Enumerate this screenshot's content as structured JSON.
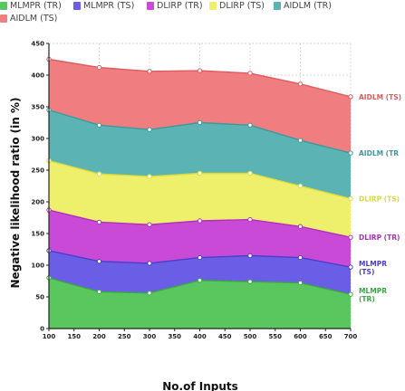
{
  "chart_data": {
    "type": "area",
    "stacked": true,
    "xlabel": "No.of Inputs",
    "ylabel": "Negative likelihood ratio (in %)",
    "x": [
      100,
      200,
      300,
      400,
      500,
      600,
      700
    ],
    "xticks": [
      "100",
      "150",
      "200",
      "250",
      "300",
      "350",
      "400",
      "450",
      "500",
      "550",
      "600",
      "650",
      "700"
    ],
    "yticks": [
      "0",
      "50",
      "100",
      "150",
      "200",
      "250",
      "300",
      "350",
      "400",
      "450"
    ],
    "xlim": [
      100,
      700
    ],
    "ylim": [
      0,
      450
    ],
    "grid": true,
    "legend_position": "top",
    "series": [
      {
        "name": "MLMPR (TR)",
        "end_label": [
          "MLMPR",
          "(TR)"
        ],
        "color": "#59c65e",
        "line_color": "#3aa844",
        "cumulative": [
          80,
          58,
          56,
          76,
          74,
          72,
          54
        ]
      },
      {
        "name": "MLMPR (TS)",
        "end_label": [
          "MLMPR",
          "(TS)"
        ],
        "color": "#6a5de6",
        "line_color": "#4a3fc8",
        "cumulative": [
          123,
          106,
          103,
          112,
          115,
          112,
          97
        ]
      },
      {
        "name": "DLIRP (TR)",
        "end_label": [
          "DLIRP (TR)"
        ],
        "color": "#c94ad6",
        "line_color": "#b02fbe",
        "cumulative": [
          187,
          168,
          164,
          170,
          172,
          161,
          144
        ]
      },
      {
        "name": "DLIRP (TS)",
        "end_label": [
          "DLIRP (TS)"
        ],
        "color": "#eef06b",
        "line_color": "#d9dc3a",
        "cumulative": [
          265,
          244,
          240,
          245,
          245,
          225,
          205
        ]
      },
      {
        "name": "AIDLM (TR)",
        "end_label": [
          "AIDLM (TR"
        ],
        "color": "#5bb3b4",
        "line_color": "#3d9a9c",
        "cumulative": [
          345,
          321,
          314,
          325,
          321,
          297,
          277
        ]
      },
      {
        "name": "AIDLM (TS)",
        "end_label": [
          "AIDLM (TS)"
        ],
        "color": "#f07e80",
        "line_color": "#e05a5d",
        "cumulative": [
          425,
          412,
          406,
          407,
          403,
          386,
          366
        ]
      }
    ]
  }
}
